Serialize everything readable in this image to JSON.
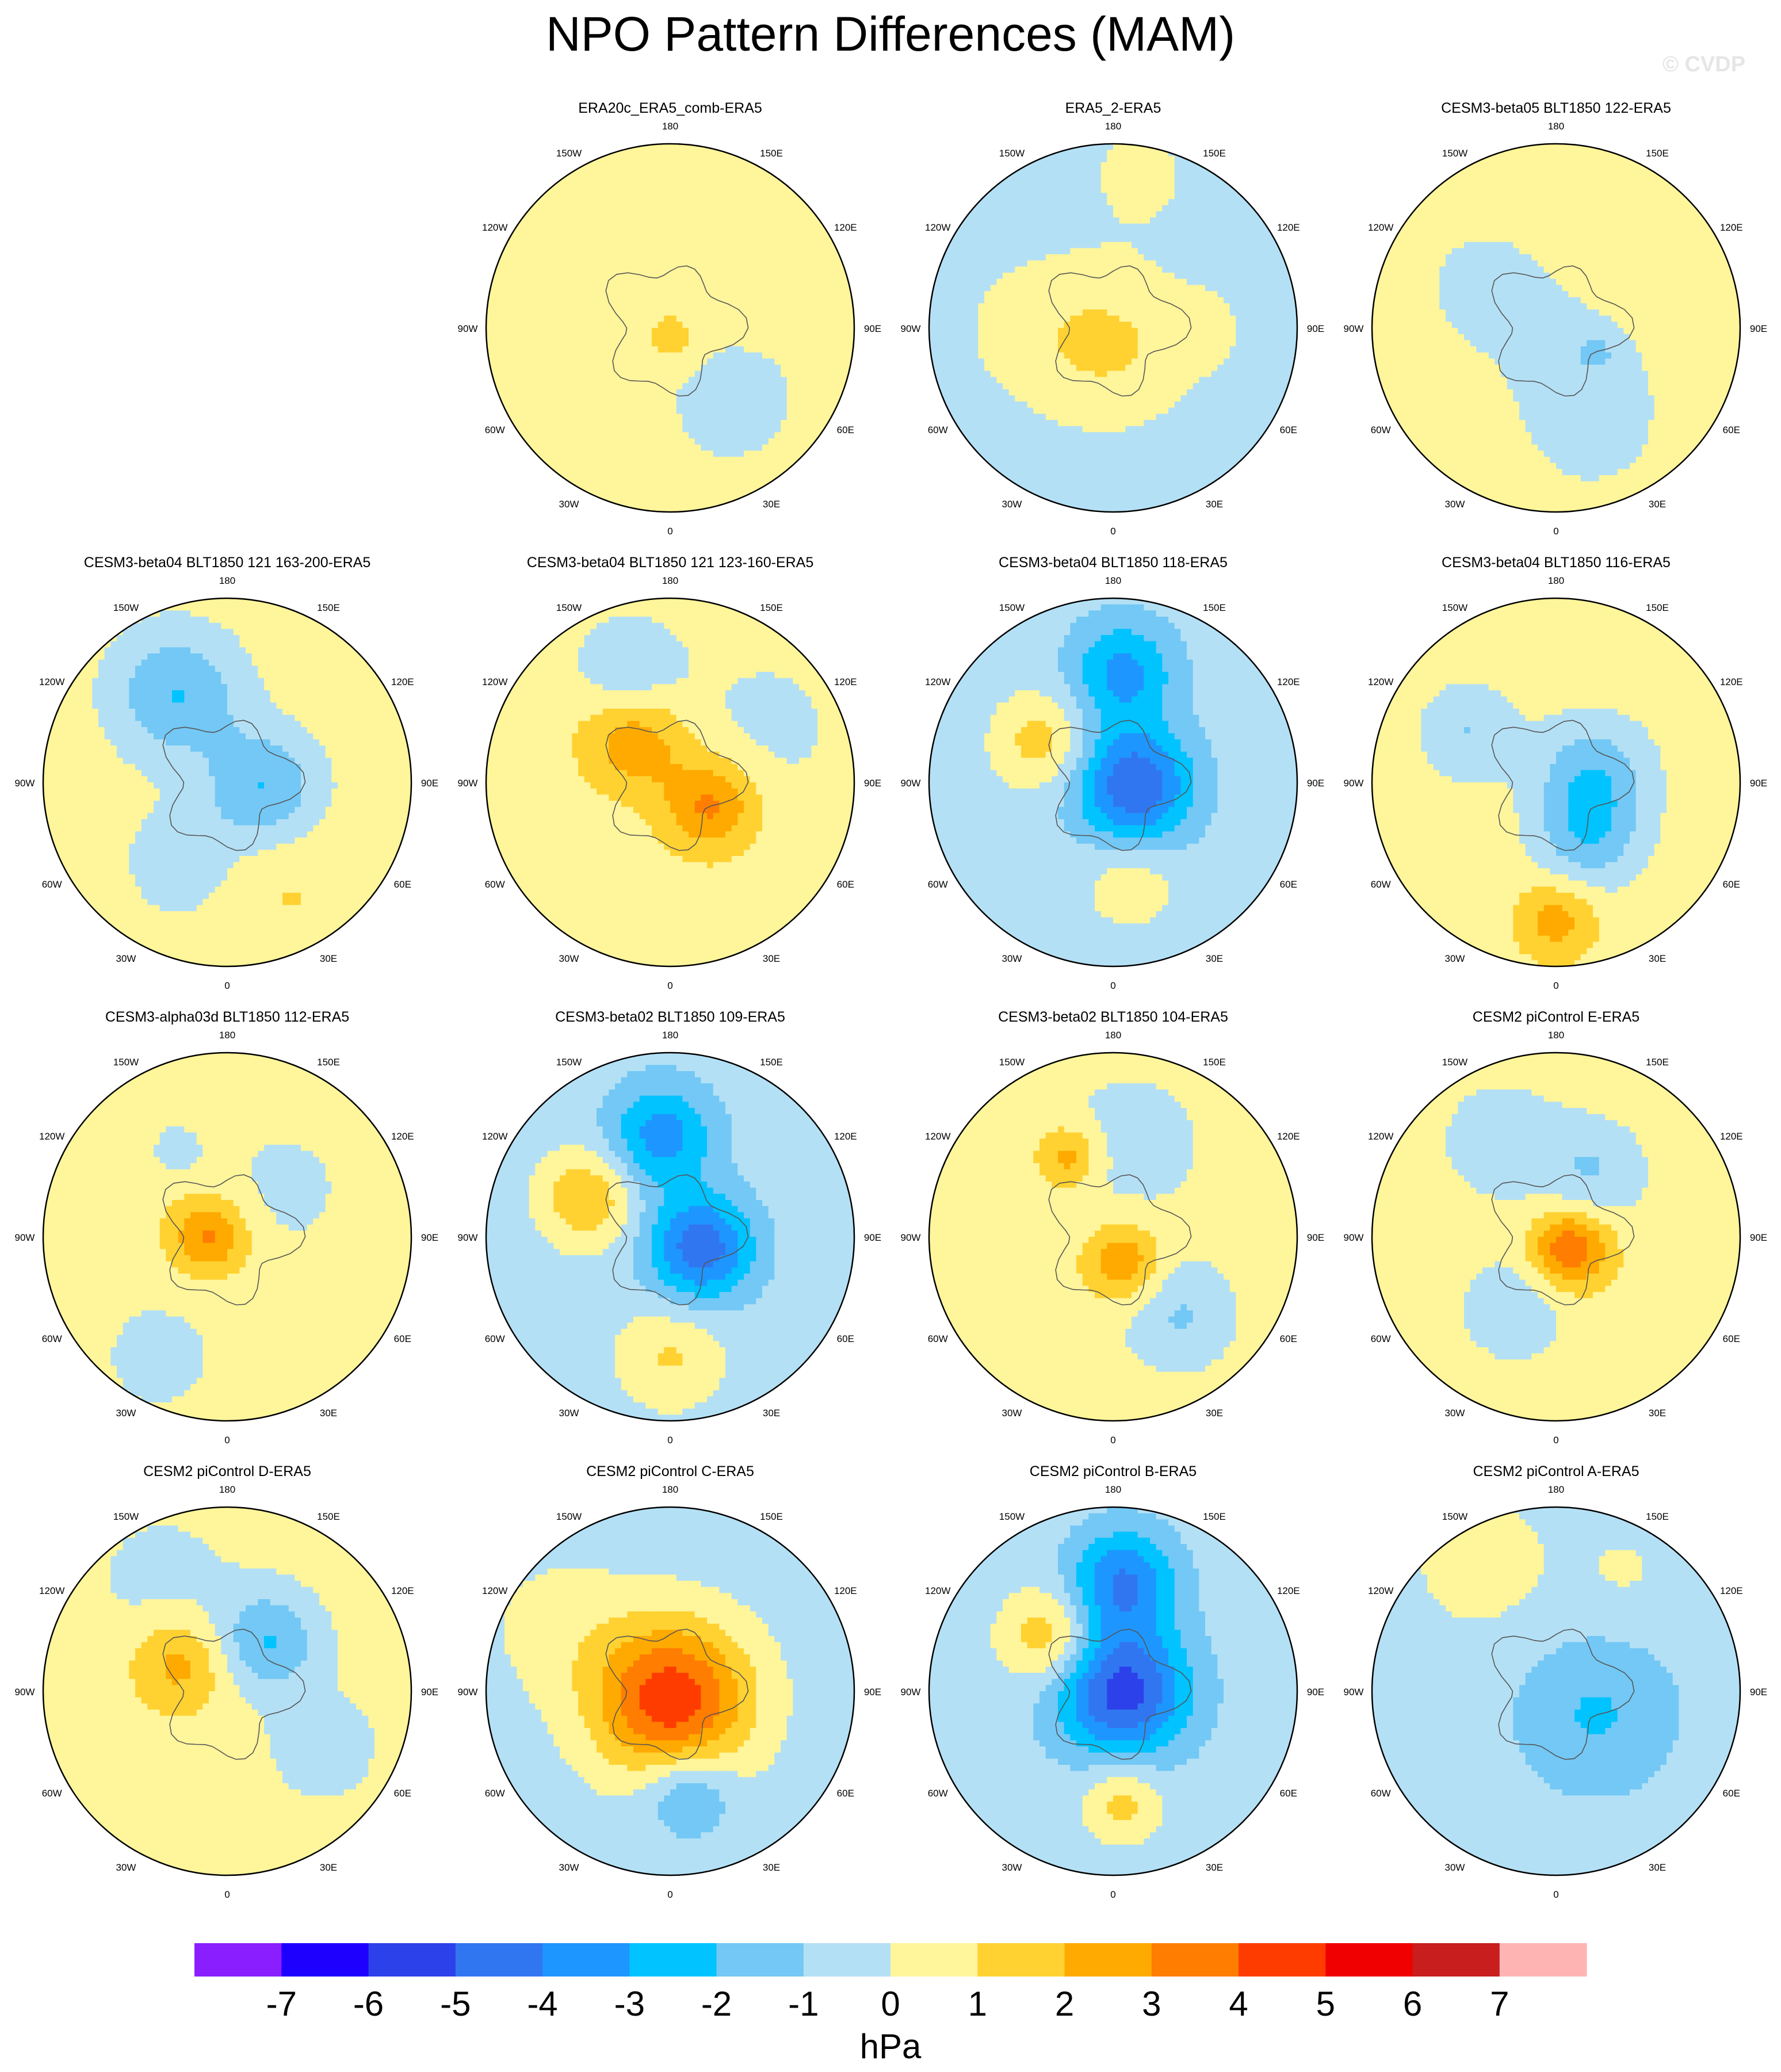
{
  "figure": {
    "title": "NPO Pattern Differences (MAM)",
    "watermark": "© CVDP"
  },
  "longitude_labels": [
    "180",
    "150E",
    "120E",
    "90E",
    "60E",
    "30E",
    "0",
    "30W",
    "60W",
    "90W",
    "120W",
    "150W"
  ],
  "palette": [
    "#8a1eff",
    "#1e00ff",
    "#2d41ea",
    "#3176f1",
    "#1e96ff",
    "#00c3ff",
    "#73c8f5",
    "#b4e0f5",
    "#fff59b",
    "#ffd232",
    "#ffaa00",
    "#ff7d00",
    "#ff3c00",
    "#f00000",
    "#c81e1e",
    "#ffb4b4"
  ],
  "colorbar": {
    "tick_labels": [
      "-7",
      "-6",
      "-5",
      "-4",
      "-3",
      "-2",
      "-1",
      "0",
      "1",
      "2",
      "3",
      "4",
      "5",
      "6",
      "7"
    ],
    "units": "hPa"
  },
  "chart_data": {
    "type": "heatmap",
    "title": "NPO Pattern Differences (MAM)",
    "projection": "north polar stereographic",
    "units": "hPa",
    "contour_levels": [
      -7,
      -6,
      -5,
      -4,
      -3,
      -2,
      -1,
      0,
      1,
      2,
      3,
      4,
      5,
      6,
      7
    ],
    "panels": [
      {
        "label": "ERA20c_ERA5_comb-ERA5",
        "row": 0,
        "col": 1,
        "background": 0.4,
        "features": [
          {
            "lon": 40,
            "r": 0.48,
            "v": -0.5,
            "s": 0.5
          },
          {
            "lon": 150,
            "r": 0.62,
            "v": 0.5,
            "s": 0.28
          },
          {
            "lon": 0,
            "r": 0.05,
            "v": 1.6,
            "s": 0.09
          },
          {
            "lon": -60,
            "r": 0.8,
            "v": 0.6,
            "s": 0.3
          }
        ]
      },
      {
        "label": "ERA5_2-ERA5",
        "row": 0,
        "col": 2,
        "background": -0.5,
        "features": [
          {
            "lon": 0,
            "r": 0.1,
            "v": 1.5,
            "s": 0.3
          },
          {
            "lon": -90,
            "r": 0.45,
            "v": 0.7,
            "s": 0.3
          },
          {
            "lon": 90,
            "r": 0.5,
            "v": 0.6,
            "s": 0.17
          },
          {
            "lon": 170,
            "r": 0.85,
            "v": 0.7,
            "s": 0.24
          }
        ]
      },
      {
        "label": "CESM3-beta05 BLT1850 122-ERA5",
        "row": 0,
        "col": 3,
        "background": 0.5,
        "features": [
          {
            "lon": 30,
            "r": 0.25,
            "v": -0.7,
            "s": 0.3
          },
          {
            "lon": -120,
            "r": 0.45,
            "v": -0.7,
            "s": 0.3
          },
          {
            "lon": 20,
            "r": 0.6,
            "v": -0.7,
            "s": 0.25
          },
          {
            "lon": 60,
            "r": 0.25,
            "v": -1.2,
            "s": 0.07
          }
        ]
      },
      {
        "label": "CESM3-beta04 BLT1850 121 163-200-ERA5",
        "row": 1,
        "col": 0,
        "background": 0.5,
        "features": [
          {
            "lon": -150,
            "r": 0.55,
            "v": -2.5,
            "s": 0.25
          },
          {
            "lon": 80,
            "r": 0.2,
            "v": -2.5,
            "s": 0.22
          },
          {
            "lon": -30,
            "r": 0.5,
            "v": -1.3,
            "s": 0.2
          },
          {
            "lon": 30,
            "r": 0.65,
            "v": 0.6,
            "s": 0.25
          }
        ]
      },
      {
        "label": "CESM3-beta04 BLT1850 121 123-160-ERA5",
        "row": 1,
        "col": 1,
        "background": 0.5,
        "features": [
          {
            "lon": -160,
            "r": 0.65,
            "v": -1.5,
            "s": 0.2
          },
          {
            "lon": -140,
            "r": 0.3,
            "v": 2.3,
            "s": 0.2
          },
          {
            "lon": 60,
            "r": 0.25,
            "v": 2.8,
            "s": 0.18
          },
          {
            "lon": 120,
            "r": 0.6,
            "v": -0.7,
            "s": 0.35
          }
        ]
      },
      {
        "label": "CESM3-beta04 BLT1850 118-ERA5",
        "row": 1,
        "col": 2,
        "background": -0.5,
        "features": [
          {
            "lon": 175,
            "r": 0.6,
            "v": -2.8,
            "s": 0.2
          },
          {
            "lon": 80,
            "r": 0.12,
            "v": -4.5,
            "s": 0.22
          },
          {
            "lon": -120,
            "r": 0.45,
            "v": 2.0,
            "s": 0.18
          },
          {
            "lon": 10,
            "r": 0.55,
            "v": 1.2,
            "s": 0.18
          }
        ]
      },
      {
        "label": "CESM3-beta04 BLT1850 116-ERA5",
        "row": 1,
        "col": 3,
        "background": 0.5,
        "features": [
          {
            "lon": 100,
            "r": 0.2,
            "v": -2.2,
            "s": 0.22
          },
          {
            "lon": 30,
            "r": 0.35,
            "v": -2.0,
            "s": 0.2
          },
          {
            "lon": 0,
            "r": 0.75,
            "v": 2.0,
            "s": 0.15
          },
          {
            "lon": -120,
            "r": 0.55,
            "v": -1.5,
            "s": 0.18
          }
        ]
      },
      {
        "label": "CESM3-alpha03d BLT1850 112-ERA5",
        "row": 2,
        "col": 0,
        "background": 0.5,
        "features": [
          {
            "lon": -90,
            "r": 0.1,
            "v": 2.8,
            "s": 0.15
          },
          {
            "lon": -30,
            "r": 0.75,
            "v": -0.7,
            "s": 0.3
          },
          {
            "lon": 130,
            "r": 0.4,
            "v": -0.7,
            "s": 0.3
          },
          {
            "lon": -150,
            "r": 0.55,
            "v": -1.3,
            "s": 0.08
          }
        ]
      },
      {
        "label": "CESM3-beta02 BLT1850 109-ERA5",
        "row": 2,
        "col": 1,
        "background": -0.5,
        "features": [
          {
            "lon": -175,
            "r": 0.55,
            "v": -3.0,
            "s": 0.2
          },
          {
            "lon": 70,
            "r": 0.18,
            "v": -4.2,
            "s": 0.2
          },
          {
            "lon": -115,
            "r": 0.5,
            "v": 2.5,
            "s": 0.18
          },
          {
            "lon": 0,
            "r": 0.65,
            "v": 1.6,
            "s": 0.2
          }
        ]
      },
      {
        "label": "CESM3-beta02 BLT1850 104-ERA5",
        "row": 2,
        "col": 2,
        "background": 0.4,
        "features": [
          {
            "lon": 20,
            "r": 0.15,
            "v": 2.5,
            "s": 0.15
          },
          {
            "lon": -150,
            "r": 0.5,
            "v": 2.2,
            "s": 0.12
          },
          {
            "lon": 40,
            "r": 0.55,
            "v": -1.5,
            "s": 0.2
          },
          {
            "lon": 170,
            "r": 0.5,
            "v": -0.8,
            "s": 0.3
          }
        ]
      },
      {
        "label": "CESM2 piControl E-ERA5",
        "row": 2,
        "col": 3,
        "background": 0.5,
        "features": [
          {
            "lon": 50,
            "r": 0.1,
            "v": 3.5,
            "s": 0.15
          },
          {
            "lon": 150,
            "r": 0.4,
            "v": -1.5,
            "s": 0.2
          },
          {
            "lon": -30,
            "r": 0.45,
            "v": -1.3,
            "s": 0.2
          },
          {
            "lon": -150,
            "r": 0.6,
            "v": -1.0,
            "s": 0.25
          }
        ]
      },
      {
        "label": "CESM2 piControl D-ERA5",
        "row": 3,
        "col": 0,
        "background": 0.5,
        "features": [
          {
            "lon": 140,
            "r": 0.35,
            "v": -2.5,
            "s": 0.2
          },
          {
            "lon": -120,
            "r": 0.3,
            "v": 2.0,
            "s": 0.18
          },
          {
            "lon": 60,
            "r": 0.6,
            "v": -1.3,
            "s": 0.2
          },
          {
            "lon": -150,
            "r": 0.7,
            "v": -0.8,
            "s": 0.3
          }
        ]
      },
      {
        "label": "CESM2 piControl C-ERA5",
        "row": 3,
        "col": 1,
        "background": -0.5,
        "features": [
          {
            "lon": 10,
            "r": 0.05,
            "v": 5.2,
            "s": 0.3
          },
          {
            "lon": 10,
            "r": 0.55,
            "v": -2.2,
            "s": 0.17
          },
          {
            "lon": -120,
            "r": 0.7,
            "v": 0.8,
            "s": 0.3
          }
        ]
      },
      {
        "label": "CESM2 piControl B-ERA5",
        "row": 3,
        "col": 2,
        "background": -0.5,
        "features": [
          {
            "lon": 175,
            "r": 0.6,
            "v": -3.5,
            "s": 0.2
          },
          {
            "lon": 90,
            "r": 0.05,
            "v": -5.0,
            "s": 0.25
          },
          {
            "lon": -130,
            "r": 0.45,
            "v": 2.5,
            "s": 0.18
          },
          {
            "lon": 5,
            "r": 0.6,
            "v": 2.0,
            "s": 0.15
          }
        ]
      },
      {
        "label": "CESM2 piControl A-ERA5",
        "row": 3,
        "col": 3,
        "background": -0.5,
        "features": [
          {
            "lon": 60,
            "r": 0.25,
            "v": -1.6,
            "s": 0.3
          },
          {
            "lon": -150,
            "r": 0.8,
            "v": 0.9,
            "s": 0.3
          },
          {
            "lon": 150,
            "r": 0.75,
            "v": 0.6,
            "s": 0.2
          }
        ]
      }
    ]
  }
}
